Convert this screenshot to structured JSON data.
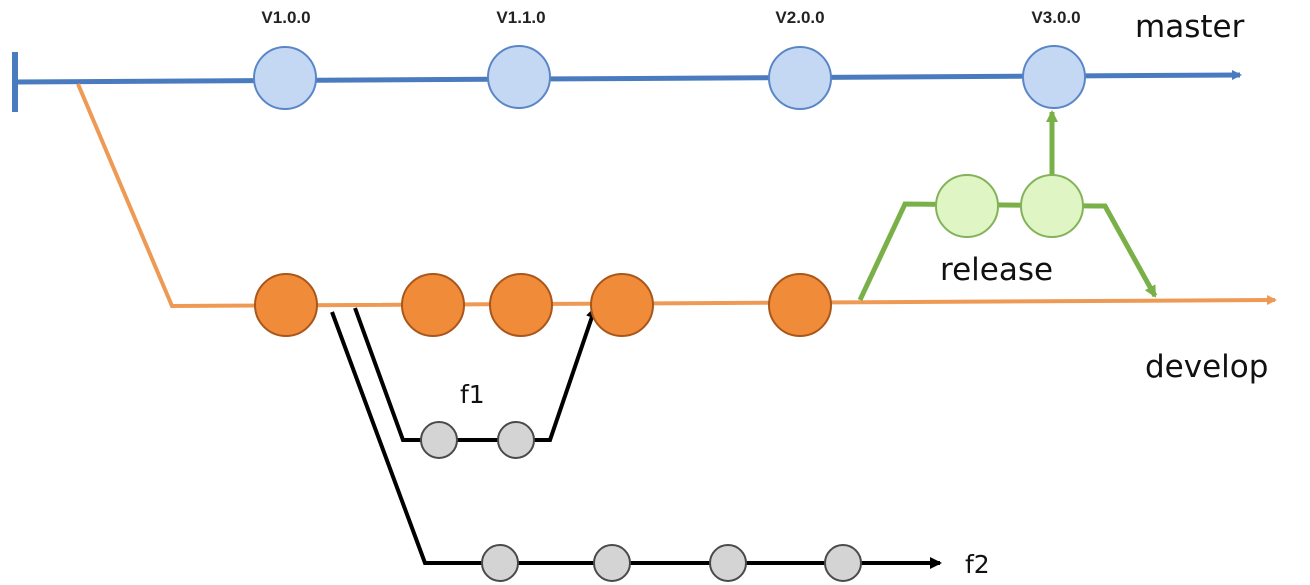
{
  "branches": {
    "master": {
      "label": "master",
      "color": "#4a7bbf"
    },
    "develop": {
      "label": "develop",
      "color": "#ee9a55"
    },
    "release": {
      "label": "release",
      "color": "#7ab048"
    },
    "f1": {
      "label": "f1",
      "color": "#000000"
    },
    "f2": {
      "label": "f2",
      "color": "#000000"
    }
  },
  "tags": [
    "V1.0.0",
    "V1.1.0",
    "V2.0.0",
    "V3.0.0"
  ],
  "nodes": {
    "master_fill": "#c4d8f4",
    "master_stroke": "#5a86c8",
    "develop_fill": "#f08b3a",
    "develop_stroke": "#a9561b",
    "release_fill": "#dff6c4",
    "release_stroke": "#84b25a",
    "feature_fill": "#d4d4d4",
    "feature_stroke": "#4a4a4a"
  }
}
